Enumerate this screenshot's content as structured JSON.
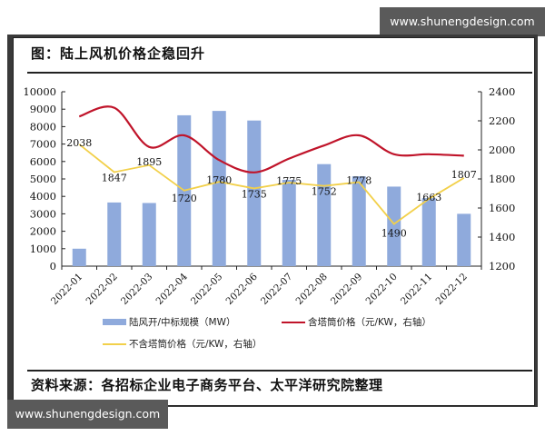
{
  "watermark": {
    "top": "www.shunengdesign.com",
    "bottom": "www.shunengdesign.com"
  },
  "title": "图：陆上风机价格企稳回升",
  "source": "资料来源：各招标企业电子商务平台、太平洋研究院整理",
  "legend": {
    "bars": "陆风开/中标规模（MW）",
    "red": "含塔筒价格（元/KW，右轴）",
    "yellow": "不含塔筒价格（元/KW，右轴）"
  },
  "colors": {
    "bar": "#8faadc",
    "red": "#c0142a",
    "yellow": "#f2d04a",
    "axis": "#222222"
  },
  "chart_data": {
    "type": "bar",
    "title": "图：陆上风机价格企稳回升",
    "xlabel": "",
    "ylabel": "",
    "categories": [
      "2022-01",
      "2022-02",
      "2022-03",
      "2022-04",
      "2022-05",
      "2022-06",
      "2022-07",
      "2022-08",
      "2022-09",
      "2022-10",
      "2022-11",
      "2022-12"
    ],
    "left_axis": {
      "ylim": [
        0,
        10000
      ],
      "ticks": [
        0,
        1000,
        2000,
        3000,
        4000,
        5000,
        6000,
        7000,
        8000,
        9000,
        10000
      ]
    },
    "right_axis": {
      "ylim": [
        1200,
        2400
      ],
      "ticks": [
        1200,
        1400,
        1600,
        1800,
        2000,
        2200,
        2400
      ]
    },
    "grid": false,
    "legend_position": "bottom",
    "series": [
      {
        "name": "陆风开/中标规模（MW）",
        "type": "bar",
        "axis": "left",
        "values": [
          1000,
          3650,
          3620,
          8650,
          8900,
          8350,
          4950,
          5850,
          5150,
          4560,
          3900,
          3000
        ]
      },
      {
        "name": "含塔筒价格（元/KW，右轴）",
        "type": "line",
        "axis": "right",
        "smooth": true,
        "values": [
          2230,
          2290,
          2020,
          2100,
          1930,
          1845,
          1940,
          2030,
          2100,
          1970,
          1970,
          1960
        ]
      },
      {
        "name": "不含塔筒价格（元/KW，右轴）",
        "type": "line",
        "axis": "right",
        "labeled": true,
        "values": [
          2038,
          1847,
          1895,
          1720,
          1780,
          1735,
          1775,
          1752,
          1778,
          1490,
          1663,
          1807
        ]
      }
    ]
  }
}
